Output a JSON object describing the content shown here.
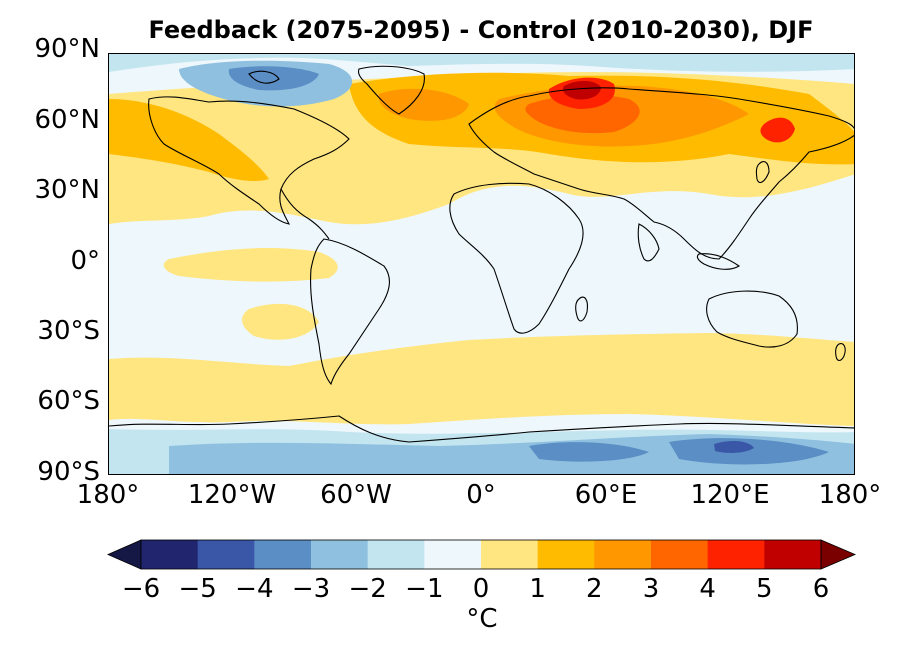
{
  "title": "Feedback (2075-2095) - Control (2010-2030), DJF",
  "map": {
    "projection": "plate carree",
    "lat_ticks": [
      "90°N",
      "60°N",
      "30°N",
      "0°",
      "30°S",
      "60°S",
      "90°S"
    ],
    "lon_ticks": [
      "180°",
      "120°W",
      "60°W",
      "0°",
      "60°E",
      "120°E",
      "180°"
    ],
    "field": "temperature difference",
    "regions_description_colors": {
      "arctic_eurasia_max": "#c00000",
      "north_hemisphere_land": "#ffb400",
      "southern_ocean": "#ffe680",
      "antarctica": "#5a8ec4"
    }
  },
  "colorbar": {
    "unit": "°C",
    "min": -6,
    "max": 6,
    "extend": "both",
    "tick_labels": [
      "−6",
      "−5",
      "−4",
      "−3",
      "−2",
      "−1",
      "0",
      "1",
      "2",
      "3",
      "4",
      "5",
      "6"
    ],
    "bins": [
      "#21256e",
      "#3a56a6",
      "#5a8ec4",
      "#8fc0df",
      "#c2e5f0",
      "#eef7fb",
      "#ffe680",
      "#ffbb00",
      "#ff9700",
      "#ff6600",
      "#ff2200",
      "#c00000"
    ],
    "under_color": "#151845",
    "over_color": "#7a0000"
  }
}
